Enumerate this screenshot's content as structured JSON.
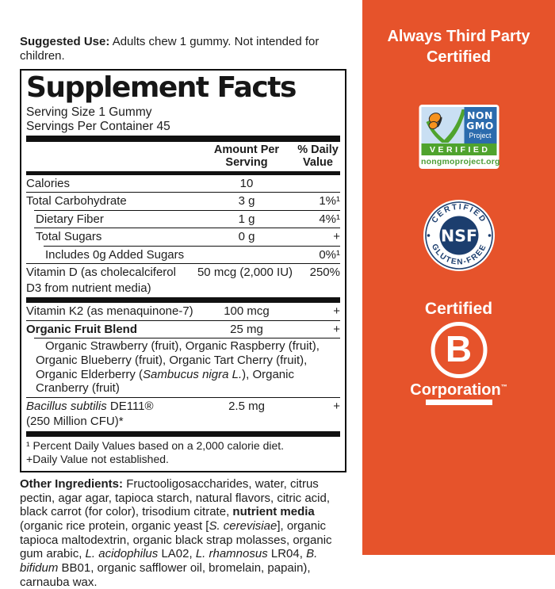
{
  "colors": {
    "orange": "#E6532B",
    "navy": "#1C3E6E",
    "gmo_blue": "#2B6BAD",
    "gmo_sky": "#C9DFF3",
    "gmo_green": "#4FA32D",
    "gmo_text_green": "#4C9F38",
    "butterfly": "#F6921E",
    "label_ink": "#1D1D1D"
  },
  "suggested_use": {
    "label": "Suggested Use:",
    "text": " Adults chew 1 gummy. Not intended for children."
  },
  "facts": {
    "title": "Supplement Facts",
    "serving_size": "Serving Size 1 Gummy",
    "servings_per_container": "Servings Per Container 45",
    "col_amount": "Amount Per Serving",
    "col_dv": "% Daily Value",
    "rows": {
      "calories": {
        "name": "Calories",
        "amount": "10",
        "dv": ""
      },
      "total_carb": {
        "name": "Total Carbohydrate",
        "amount": "3 g",
        "dv": "1%¹"
      },
      "dietary_fiber": {
        "name": "Dietary Fiber",
        "amount": "1 g",
        "dv": "4%¹"
      },
      "total_sugars": {
        "name": "Total Sugars",
        "amount": "0 g",
        "dv": "+"
      },
      "added_sugars": {
        "name": "Includes 0g Added Sugars",
        "amount": "",
        "dv": "0%¹"
      },
      "vitamin_d": {
        "name": "Vitamin D (as cholecalciferol D3 from nutrient media)",
        "amount": "50 mcg (2,000 IU)",
        "dv": "250%"
      },
      "vitamin_k2": {
        "name": "Vitamin K2 (as menaquinone-7)",
        "amount": "100 mcg",
        "dv": "+"
      },
      "fruit_blend": {
        "name": "Organic Fruit Blend",
        "amount": "25 mg",
        "dv": "+"
      },
      "fruit_blend_sub": [
        {
          "t": "Organic Strawberry (fruit), Organic Raspberry (fruit), Organic Blueberry (fruit), Organic Tart Cherry (fruit), Organic Elderberry ("
        },
        {
          "t": "Sambucus nigra L.",
          "i": true
        },
        {
          "t": "), Organic Cranberry (fruit)"
        }
      ],
      "bacillus": {
        "name_rich": [
          {
            "t": "Bacillus subtilis",
            "i": true
          },
          {
            "t": " DE111®"
          }
        ],
        "name_line2": "(250 Million CFU)*",
        "amount": "2.5 mg",
        "dv": "+"
      }
    },
    "footnotes": [
      "¹ Percent Daily Values based on a 2,000 calorie diet.",
      "+Daily Value not established."
    ]
  },
  "other_ingredients": [
    {
      "t": "Other Ingredients: ",
      "b": true
    },
    {
      "t": "Fructooligosaccharides, water, citrus pectin, agar agar, tapioca starch, natural flavors, citric acid, black carrot (for color), trisodium citrate, "
    },
    {
      "t": "nutrient media",
      "b": true
    },
    {
      "t": " (organic rice protein, organic yeast ["
    },
    {
      "t": "S. cerevisiae",
      "i": true
    },
    {
      "t": "], organic tapioca maltodextrin, organic black strap molasses, organic gum arabic, "
    },
    {
      "t": "L. acidophilus",
      "i": true
    },
    {
      "t": " LA02, "
    },
    {
      "t": "L. rhamnosus",
      "i": true
    },
    {
      "t": " LR04, "
    },
    {
      "t": "B. bifidum",
      "i": true
    },
    {
      "t": " BB01, organic safflower oil, bromelain, papain), carnauba wax."
    }
  ],
  "sidebar": {
    "title": "Always Third Party Certified",
    "non_gmo": {
      "line1": "NON",
      "line2": "GMO",
      "line3": "Project",
      "verified": "VERIFIED",
      "url": "nongmoproject.org"
    },
    "nsf": {
      "arc_top": "CERTIFIED",
      "center": "NSF",
      "arc_bottom": "GLUTEN-FREE"
    },
    "bcorp": {
      "top": "Certified",
      "letter": "B",
      "bottom": "Corporation",
      "mark": "™"
    }
  }
}
